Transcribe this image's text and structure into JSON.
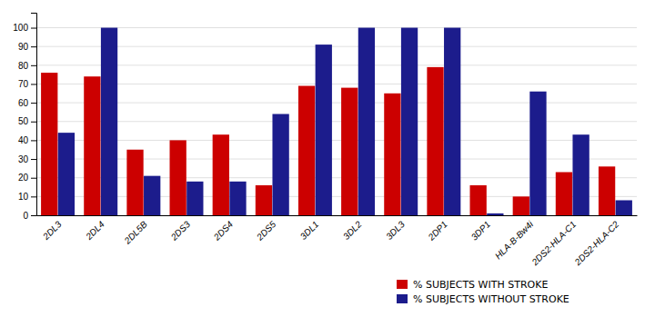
{
  "chart_data": {
    "type": "bar",
    "categories": [
      "2DL3",
      "2DL4",
      "2DL5B",
      "2DS3",
      "2DS4",
      "2DS5",
      "3DL1",
      "3DL2",
      "3DL3",
      "2DP1",
      "3DP1",
      "HLA-B-Bw4i",
      "2DS2-HLA-C1",
      "2DS2-HLA-C2"
    ],
    "series": [
      {
        "name": "% SUBJECTS WITH STROKE",
        "color": "#CC0000",
        "values": [
          76,
          74,
          35,
          40,
          43,
          16,
          69,
          68,
          65,
          79,
          16,
          10,
          23,
          26
        ]
      },
      {
        "name": "% SUBJECTS WITHOUT STROKE",
        "color": "#1C1C8C",
        "values": [
          44,
          100,
          21,
          18,
          18,
          54,
          91,
          100,
          100,
          100,
          1,
          66,
          43,
          8
        ]
      }
    ],
    "ylim": [
      0,
      108
    ],
    "yticks": [
      0,
      10,
      20,
      30,
      40,
      50,
      60,
      70,
      80,
      90,
      100
    ],
    "grid": true,
    "legend": "bottom"
  }
}
